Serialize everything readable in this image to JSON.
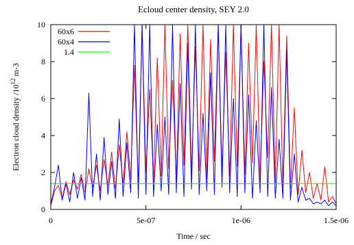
{
  "chart_data": {
    "type": "line",
    "title": "Ecloud center density, SEY 2.0",
    "xlabel": "Time / sec",
    "ylabel": {
      "base": "Electron cloud density /10",
      "sup": "12",
      "unit": " m-3"
    },
    "xlim": [
      0,
      1.5e-06
    ],
    "ylim": [
      0,
      10
    ],
    "xticks": [
      {
        "value": 0,
        "label": "0"
      },
      {
        "value": 5e-07,
        "label": "5e-07"
      },
      {
        "value": 1e-06,
        "label": "1e-06"
      },
      {
        "value": 1.5e-06,
        "label": "1.5e-06"
      }
    ],
    "yticks": [
      {
        "value": 0,
        "label": "0"
      },
      {
        "value": 2,
        "label": "2"
      },
      {
        "value": 4,
        "label": "4"
      },
      {
        "value": 6,
        "label": "6"
      },
      {
        "value": 8,
        "label": "8"
      },
      {
        "value": 10,
        "label": "10"
      }
    ],
    "grid": false,
    "legend_position": "top-left",
    "series": [
      {
        "name": "60x6",
        "color": "#ff0000",
        "x": [
          0,
          2e-08,
          4e-08,
          6e-08,
          8e-08,
          1e-07,
          1.2e-07,
          1.4e-07,
          1.6e-07,
          1.8e-07,
          2e-07,
          2.2e-07,
          2.4e-07,
          2.6e-07,
          2.8e-07,
          3e-07,
          3.2e-07,
          3.4e-07,
          3.6e-07,
          3.8e-07,
          4e-07,
          4.2e-07,
          4.4e-07,
          4.6e-07,
          4.8e-07,
          5e-07,
          5.2e-07,
          5.4e-07,
          5.6e-07,
          5.8e-07,
          6e-07,
          6.2e-07,
          6.4e-07,
          6.6e-07,
          6.8e-07,
          7e-07,
          7.2e-07,
          7.4e-07,
          7.6e-07,
          7.8e-07,
          8e-07,
          8.2e-07,
          8.4e-07,
          8.6e-07,
          8.8e-07,
          9e-07,
          9.2e-07,
          9.4e-07,
          9.6e-07,
          9.8e-07,
          1e-06,
          1.02e-06,
          1.04e-06,
          1.06e-06,
          1.08e-06,
          1.1e-06,
          1.12e-06,
          1.14e-06,
          1.16e-06,
          1.18e-06,
          1.2e-06,
          1.22e-06,
          1.24e-06,
          1.26e-06,
          1.28e-06,
          1.3e-06,
          1.32e-06,
          1.34e-06,
          1.36e-06,
          1.38e-06,
          1.4e-06,
          1.42e-06,
          1.44e-06,
          1.46e-06,
          1.48e-06,
          1.5e-06
        ],
        "y": [
          0.2,
          1.0,
          1.3,
          0.6,
          1.5,
          0.8,
          1.6,
          1.1,
          1.9,
          0.9,
          2.2,
          1.2,
          2.4,
          1.0,
          2.7,
          1.3,
          3.1,
          1.1,
          3.5,
          1.4,
          4.2,
          1.6,
          7.8,
          1.2,
          10,
          2.0,
          6.5,
          1.5,
          8.2,
          1.8,
          10,
          2.2,
          7.0,
          1.6,
          9.5,
          2.4,
          10,
          1.9,
          8.8,
          2.1,
          10,
          1.7,
          9.2,
          2.6,
          10,
          2.0,
          8.5,
          1.8,
          10,
          2.3,
          10,
          1.9,
          9.0,
          2.5,
          10,
          1.6,
          8.0,
          2.8,
          10,
          1.4,
          10,
          1.2,
          9.4,
          1.1,
          5.5,
          0.8,
          3.2,
          0.9,
          2.0,
          0.6,
          1.4,
          0.5,
          2.3,
          0.4,
          0.7,
          0.3
        ]
      },
      {
        "name": "60x4",
        "color": "#0000ff",
        "x": [
          0,
          2e-08,
          4e-08,
          6e-08,
          8e-08,
          1e-07,
          1.2e-07,
          1.4e-07,
          1.6e-07,
          1.8e-07,
          2e-07,
          2.2e-07,
          2.4e-07,
          2.6e-07,
          2.8e-07,
          3e-07,
          3.2e-07,
          3.4e-07,
          3.6e-07,
          3.8e-07,
          4e-07,
          4.2e-07,
          4.4e-07,
          4.6e-07,
          4.8e-07,
          5e-07,
          5.2e-07,
          5.4e-07,
          5.6e-07,
          5.8e-07,
          6e-07,
          6.2e-07,
          6.4e-07,
          6.6e-07,
          6.8e-07,
          7e-07,
          7.2e-07,
          7.4e-07,
          7.6e-07,
          7.8e-07,
          8e-07,
          8.2e-07,
          8.4e-07,
          8.6e-07,
          8.8e-07,
          9e-07,
          9.2e-07,
          9.4e-07,
          9.6e-07,
          9.8e-07,
          1e-06,
          1.02e-06,
          1.04e-06,
          1.06e-06,
          1.08e-06,
          1.1e-06,
          1.12e-06,
          1.14e-06,
          1.16e-06,
          1.18e-06,
          1.2e-06,
          1.22e-06,
          1.24e-06,
          1.26e-06,
          1.28e-06,
          1.3e-06,
          1.32e-06,
          1.34e-06,
          1.36e-06,
          1.38e-06,
          1.4e-06,
          1.42e-06,
          1.44e-06,
          1.46e-06,
          1.48e-06,
          1.5e-06
        ],
        "y": [
          0.3,
          1.2,
          2.4,
          0.5,
          1.4,
          0.4,
          2.0,
          0.6,
          1.7,
          0.5,
          6.3,
          0.7,
          3.0,
          0.5,
          3.9,
          0.8,
          2.6,
          0.6,
          4.9,
          0.7,
          3.6,
          0.9,
          10,
          0.6,
          10,
          0.8,
          10,
          0.7,
          4.6,
          1.0,
          5.0,
          0.8,
          10,
          0.9,
          6.8,
          0.7,
          9.0,
          1.1,
          10,
          0.8,
          5.2,
          1.0,
          7.4,
          0.8,
          10,
          1.2,
          10,
          0.9,
          6.0,
          0.7,
          10,
          0.9,
          6.2,
          0.6,
          4.8,
          0.9,
          10,
          0.7,
          6.6,
          0.6,
          3.8,
          0.6,
          8.6,
          0.5,
          3.0,
          0.4,
          1.2,
          0.5,
          0.6,
          0.3,
          0.4,
          0.3,
          0.5,
          0.2,
          0.4,
          0.2
        ]
      },
      {
        "name": "1.4",
        "color": "#00ff00",
        "x": [
          0,
          1.5e-06
        ],
        "y": [
          1.4,
          1.4
        ]
      }
    ]
  }
}
